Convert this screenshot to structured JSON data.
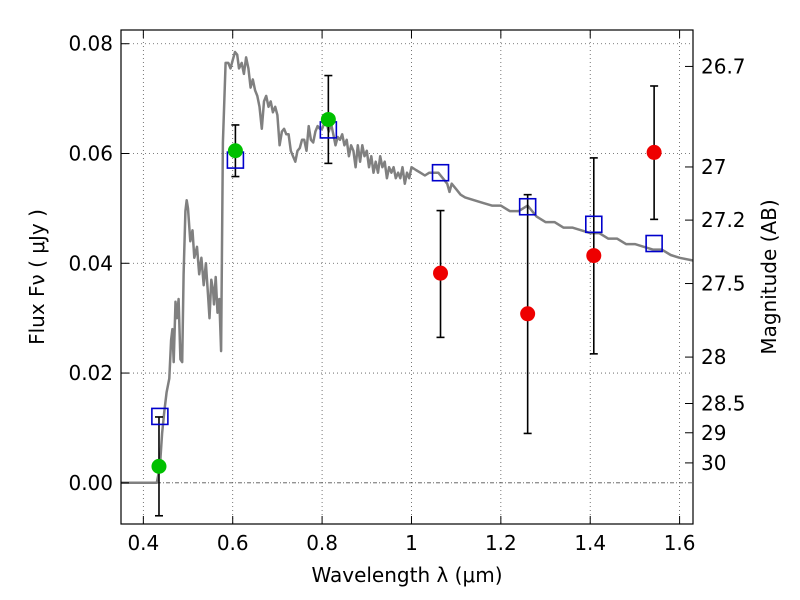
{
  "chart_data": {
    "type": "scatter",
    "xlabel": "Wavelength  λ (μm)",
    "ylabel": "Flux  Fν  ( μJy )",
    "ylabel_right": "Magnitude (AB)",
    "xlim": [
      0.35,
      1.63
    ],
    "ylim": [
      -0.0075,
      0.0825
    ],
    "x_ticks": [
      0.4,
      0.6,
      0.8,
      1.0,
      1.2,
      1.4,
      1.6
    ],
    "x_tick_labels": [
      "0.4",
      "0.6",
      "0.8",
      "1",
      "1.2",
      "1.4",
      "1.6"
    ],
    "y_ticks": [
      0.0,
      0.02,
      0.04,
      0.06,
      0.08
    ],
    "y_tick_labels": [
      "0.00",
      "0.02",
      "0.04",
      "0.06",
      "0.08"
    ],
    "right_ticks": [
      {
        "label": "26.7",
        "mag": 26.7
      },
      {
        "label": "27",
        "mag": 27.0
      },
      {
        "label": "27.2",
        "mag": 27.2
      },
      {
        "label": "27.5",
        "mag": 27.5
      },
      {
        "label": "28",
        "mag": 28.0
      },
      {
        "label": "28.5",
        "mag": 28.5
      },
      {
        "label": "29",
        "mag": 29.0
      },
      {
        "label": "30",
        "mag": 30.0
      }
    ],
    "grid": true,
    "colors": {
      "detected": "#00c000",
      "upper": "#ee0000",
      "model": "#0000cc",
      "sed": "#808080"
    },
    "sed": [
      [
        0.35,
        0.0
      ],
      [
        0.43,
        0.0
      ],
      [
        0.437,
        0.003
      ],
      [
        0.442,
        0.009
      ],
      [
        0.447,
        0.013
      ],
      [
        0.452,
        0.0165
      ],
      [
        0.458,
        0.019
      ],
      [
        0.462,
        0.026
      ],
      [
        0.465,
        0.028
      ],
      [
        0.468,
        0.022
      ],
      [
        0.472,
        0.033
      ],
      [
        0.475,
        0.03
      ],
      [
        0.479,
        0.0335
      ],
      [
        0.483,
        0.0225
      ],
      [
        0.487,
        0.022
      ],
      [
        0.49,
        0.038
      ],
      [
        0.494,
        0.0495
      ],
      [
        0.497,
        0.0515
      ],
      [
        0.5,
        0.05
      ],
      [
        0.505,
        0.044
      ],
      [
        0.51,
        0.046
      ],
      [
        0.514,
        0.041
      ],
      [
        0.52,
        0.043
      ],
      [
        0.525,
        0.038
      ],
      [
        0.53,
        0.041
      ],
      [
        0.535,
        0.036
      ],
      [
        0.54,
        0.04
      ],
      [
        0.545,
        0.034
      ],
      [
        0.548,
        0.03
      ],
      [
        0.552,
        0.037
      ],
      [
        0.556,
        0.035
      ],
      [
        0.558,
        0.0325
      ],
      [
        0.562,
        0.0375
      ],
      [
        0.566,
        0.031
      ],
      [
        0.57,
        0.0335
      ],
      [
        0.574,
        0.024
      ],
      [
        0.578,
        0.062
      ],
      [
        0.584,
        0.0765
      ],
      [
        0.59,
        0.0765
      ],
      [
        0.595,
        0.0755
      ],
      [
        0.6,
        0.077
      ],
      [
        0.605,
        0.0785
      ],
      [
        0.61,
        0.078
      ],
      [
        0.614,
        0.0755
      ],
      [
        0.62,
        0.0765
      ],
      [
        0.625,
        0.0745
      ],
      [
        0.63,
        0.0775
      ],
      [
        0.635,
        0.0755
      ],
      [
        0.64,
        0.072
      ],
      [
        0.645,
        0.0735
      ],
      [
        0.65,
        0.0715
      ],
      [
        0.655,
        0.0705
      ],
      [
        0.66,
        0.0685
      ],
      [
        0.665,
        0.0645
      ],
      [
        0.67,
        0.0695
      ],
      [
        0.675,
        0.0705
      ],
      [
        0.68,
        0.0685
      ],
      [
        0.685,
        0.0695
      ],
      [
        0.69,
        0.0675
      ],
      [
        0.695,
        0.0685
      ],
      [
        0.7,
        0.067
      ],
      [
        0.705,
        0.0615
      ],
      [
        0.71,
        0.064
      ],
      [
        0.715,
        0.0645
      ],
      [
        0.72,
        0.0635
      ],
      [
        0.725,
        0.0635
      ],
      [
        0.73,
        0.0605
      ],
      [
        0.735,
        0.0595
      ],
      [
        0.74,
        0.0585
      ],
      [
        0.745,
        0.0605
      ],
      [
        0.75,
        0.061
      ],
      [
        0.755,
        0.0625
      ],
      [
        0.76,
        0.0625
      ],
      [
        0.765,
        0.0605
      ],
      [
        0.77,
        0.065
      ],
      [
        0.775,
        0.0625
      ],
      [
        0.78,
        0.062
      ],
      [
        0.785,
        0.064
      ],
      [
        0.79,
        0.065
      ],
      [
        0.795,
        0.0645
      ],
      [
        0.8,
        0.0645
      ],
      [
        0.805,
        0.0655
      ],
      [
        0.81,
        0.0655
      ],
      [
        0.815,
        0.064
      ],
      [
        0.82,
        0.0655
      ],
      [
        0.825,
        0.0635
      ],
      [
        0.83,
        0.0615
      ],
      [
        0.835,
        0.063
      ],
      [
        0.84,
        0.0625
      ],
      [
        0.845,
        0.0635
      ],
      [
        0.85,
        0.0615
      ],
      [
        0.855,
        0.0625
      ],
      [
        0.86,
        0.0595
      ],
      [
        0.865,
        0.0615
      ],
      [
        0.87,
        0.0605
      ],
      [
        0.875,
        0.0575
      ],
      [
        0.88,
        0.0615
      ],
      [
        0.885,
        0.0585
      ],
      [
        0.89,
        0.0615
      ],
      [
        0.895,
        0.0595
      ],
      [
        0.9,
        0.0605
      ],
      [
        0.905,
        0.0575
      ],
      [
        0.91,
        0.0595
      ],
      [
        0.915,
        0.0565
      ],
      [
        0.92,
        0.0585
      ],
      [
        0.925,
        0.0565
      ],
      [
        0.93,
        0.0595
      ],
      [
        0.935,
        0.0575
      ],
      [
        0.94,
        0.0585
      ],
      [
        0.945,
        0.0555
      ],
      [
        0.95,
        0.0575
      ],
      [
        0.955,
        0.0565
      ],
      [
        0.96,
        0.0575
      ],
      [
        0.965,
        0.0555
      ],
      [
        0.97,
        0.0565
      ],
      [
        0.975,
        0.0555
      ],
      [
        0.98,
        0.0575
      ],
      [
        0.985,
        0.0545
      ],
      [
        0.99,
        0.0565
      ],
      [
        0.995,
        0.0555
      ],
      [
        1.0,
        0.0575
      ],
      [
        1.01,
        0.057
      ],
      [
        1.02,
        0.0565
      ],
      [
        1.03,
        0.056
      ],
      [
        1.04,
        0.0565
      ],
      [
        1.05,
        0.0565
      ],
      [
        1.06,
        0.0565
      ],
      [
        1.07,
        0.0555
      ],
      [
        1.08,
        0.0545
      ],
      [
        1.085,
        0.053
      ],
      [
        1.09,
        0.0545
      ],
      [
        1.1,
        0.0535
      ],
      [
        1.11,
        0.0525
      ],
      [
        1.12,
        0.052
      ],
      [
        1.14,
        0.0515
      ],
      [
        1.16,
        0.051
      ],
      [
        1.18,
        0.0505
      ],
      [
        1.2,
        0.0505
      ],
      [
        1.22,
        0.0495
      ],
      [
        1.24,
        0.0495
      ],
      [
        1.26,
        0.0505
      ],
      [
        1.28,
        0.0485
      ],
      [
        1.3,
        0.0475
      ],
      [
        1.32,
        0.0475
      ],
      [
        1.34,
        0.0465
      ],
      [
        1.36,
        0.0465
      ],
      [
        1.38,
        0.046
      ],
      [
        1.4,
        0.0455
      ],
      [
        1.42,
        0.0455
      ],
      [
        1.44,
        0.0445
      ],
      [
        1.46,
        0.0445
      ],
      [
        1.48,
        0.0435
      ],
      [
        1.5,
        0.0435
      ],
      [
        1.52,
        0.043
      ],
      [
        1.54,
        0.0425
      ],
      [
        1.56,
        0.0425
      ],
      [
        1.58,
        0.0415
      ],
      [
        1.6,
        0.041
      ],
      [
        1.63,
        0.0405
      ]
    ],
    "detections": [
      {
        "x": 0.435,
        "y": 0.003,
        "err": 0.009
      },
      {
        "x": 0.606,
        "y": 0.0605,
        "err": 0.0047
      },
      {
        "x": 0.814,
        "y": 0.0662,
        "err": 0.008
      }
    ],
    "upper_limits": [
      {
        "x": 1.065,
        "y": 0.0382,
        "ylow": 0.0265,
        "yhigh": 0.0496
      },
      {
        "x": 1.26,
        "y": 0.0308,
        "ylow": 0.009,
        "yhigh": 0.0525
      },
      {
        "x": 1.408,
        "y": 0.0414,
        "ylow": 0.0235,
        "yhigh": 0.0592
      },
      {
        "x": 1.543,
        "y": 0.0602,
        "ylow": 0.048,
        "yhigh": 0.0723
      }
    ],
    "model_points": [
      {
        "x": 0.437,
        "y": 0.0121
      },
      {
        "x": 0.606,
        "y": 0.0588
      },
      {
        "x": 0.814,
        "y": 0.0643
      },
      {
        "x": 1.065,
        "y": 0.0565
      },
      {
        "x": 1.26,
        "y": 0.0503
      },
      {
        "x": 1.408,
        "y": 0.0471
      },
      {
        "x": 1.543,
        "y": 0.0436
      }
    ]
  }
}
